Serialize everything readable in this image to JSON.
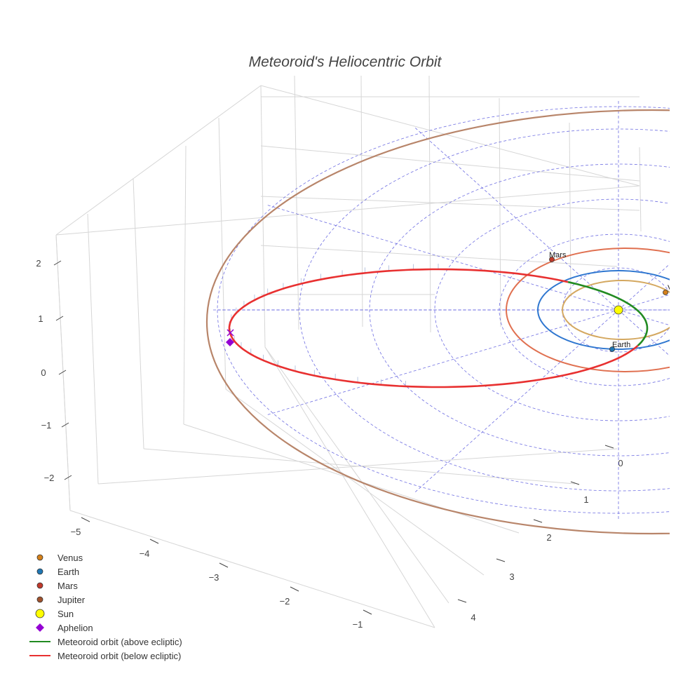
{
  "chart_data": {
    "type": "scatter3d",
    "title": "Meteoroid's Heliocentric Orbit",
    "x_ticks": [
      "−5",
      "−4",
      "−3",
      "−2",
      "−1"
    ],
    "y_ticks": [
      "0",
      "1",
      "2",
      "3",
      "4"
    ],
    "z_ticks": [
      "2",
      "1",
      "0",
      "−1",
      "−2"
    ],
    "bodies": [
      {
        "name": "Sun",
        "label": "",
        "color": "#ffff00"
      },
      {
        "name": "Venus",
        "label": "Ven",
        "color": "#d4801a"
      },
      {
        "name": "Earth",
        "label": "Earth",
        "color": "#1f77b4"
      },
      {
        "name": "Mars",
        "label": "Mars",
        "color": "#c0392b"
      }
    ],
    "series": [
      {
        "name": "Venus",
        "marker": "circle",
        "color": "#d4801a",
        "orbit_color": "#d4a860",
        "orbit_radius_au": 0.72
      },
      {
        "name": "Earth",
        "marker": "circle",
        "color": "#1f77b4",
        "orbit_color": "#2f77d0",
        "orbit_radius_au": 1.0
      },
      {
        "name": "Mars",
        "marker": "circle",
        "color": "#c0392b",
        "orbit_color": "#e07050",
        "orbit_radius_au": 1.52
      },
      {
        "name": "Jupiter",
        "marker": "circle",
        "color": "#a0522d",
        "orbit_color": "#b8856a",
        "orbit_radius_au": 5.2
      },
      {
        "name": "Sun",
        "marker": "circle",
        "color": "#ffff00"
      },
      {
        "name": "Aphelion",
        "marker": "diamond",
        "color": "#9400d3"
      },
      {
        "name": "Meteoroid orbit (above ecliptic)",
        "marker": "line",
        "color": "#228b22"
      },
      {
        "name": "Meteoroid orbit (below ecliptic)",
        "marker": "line",
        "color": "#e83030"
      }
    ],
    "ecliptic_grid": {
      "color": "#5555dd",
      "rings_au": [
        1,
        2,
        3,
        4,
        5,
        6
      ]
    },
    "grid": true,
    "legend_position": "bottom-left"
  }
}
